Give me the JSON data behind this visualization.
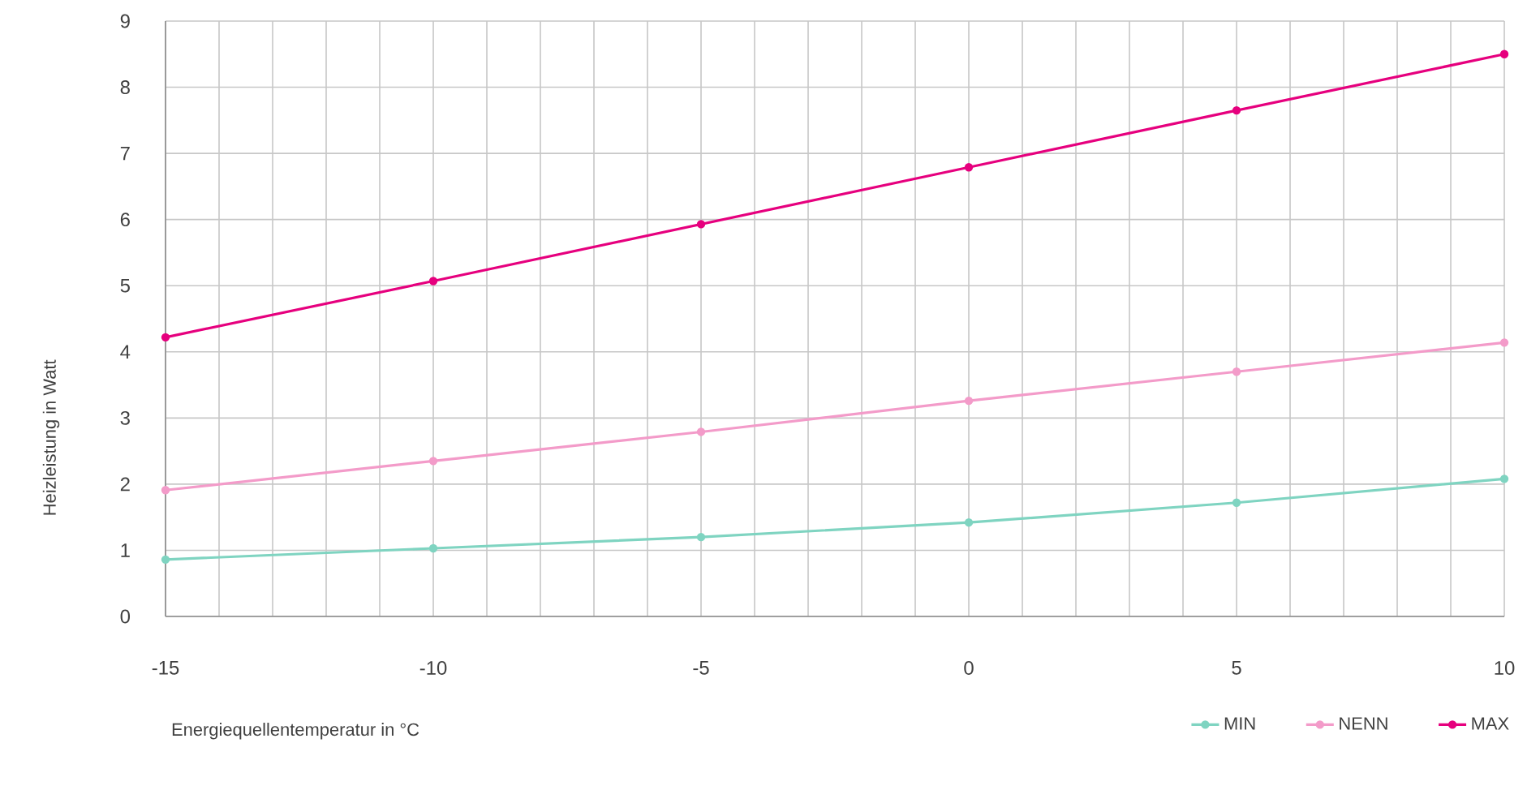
{
  "chart_data": {
    "type": "line",
    "xlabel": "Energiequellentemperatur in °C",
    "ylabel": "Heizleistung in Watt",
    "x": [
      -15,
      -10,
      -5,
      0,
      5,
      10
    ],
    "series": [
      {
        "name": "MIN",
        "color": "#7fd4c1",
        "values": [
          0.86,
          1.03,
          1.2,
          1.42,
          1.72,
          2.08
        ]
      },
      {
        "name": "NENN",
        "color": "#f39bc9",
        "values": [
          1.91,
          2.35,
          2.79,
          3.26,
          3.7,
          4.14
        ]
      },
      {
        "name": "MAX",
        "color": "#e6007e",
        "values": [
          4.22,
          5.07,
          5.93,
          6.79,
          7.65,
          8.5
        ]
      }
    ],
    "xlim": [
      -15,
      10
    ],
    "ylim": [
      0,
      9
    ],
    "xticks": [
      -15,
      {
        "value": -14,
        "label": null
      },
      {
        "value": -13,
        "label": null
      },
      {
        "value": -12,
        "label": null
      },
      {
        "value": -11,
        "label": null
      },
      -10,
      {
        "value": -9,
        "label": null
      },
      {
        "value": -8,
        "label": null
      },
      {
        "value": -7,
        "label": null
      },
      {
        "value": -6,
        "label": null
      },
      -5,
      {
        "value": -4,
        "label": null
      },
      {
        "value": -3,
        "label": null
      },
      {
        "value": -2,
        "label": null
      },
      {
        "value": -1,
        "label": null
      },
      0,
      {
        "value": 1,
        "label": null
      },
      {
        "value": 2,
        "label": null
      },
      {
        "value": 3,
        "label": null
      },
      {
        "value": 4,
        "label": null
      },
      5,
      {
        "value": 6,
        "label": null
      },
      {
        "value": 7,
        "label": null
      },
      {
        "value": 8,
        "label": null
      },
      {
        "value": 9,
        "label": null
      },
      10
    ],
    "yticks": [
      0,
      1,
      2,
      3,
      4,
      5,
      6,
      7,
      8,
      9
    ],
    "grid": true,
    "legend": "bottom right",
    "marker": "circle",
    "line_style": "solid"
  }
}
